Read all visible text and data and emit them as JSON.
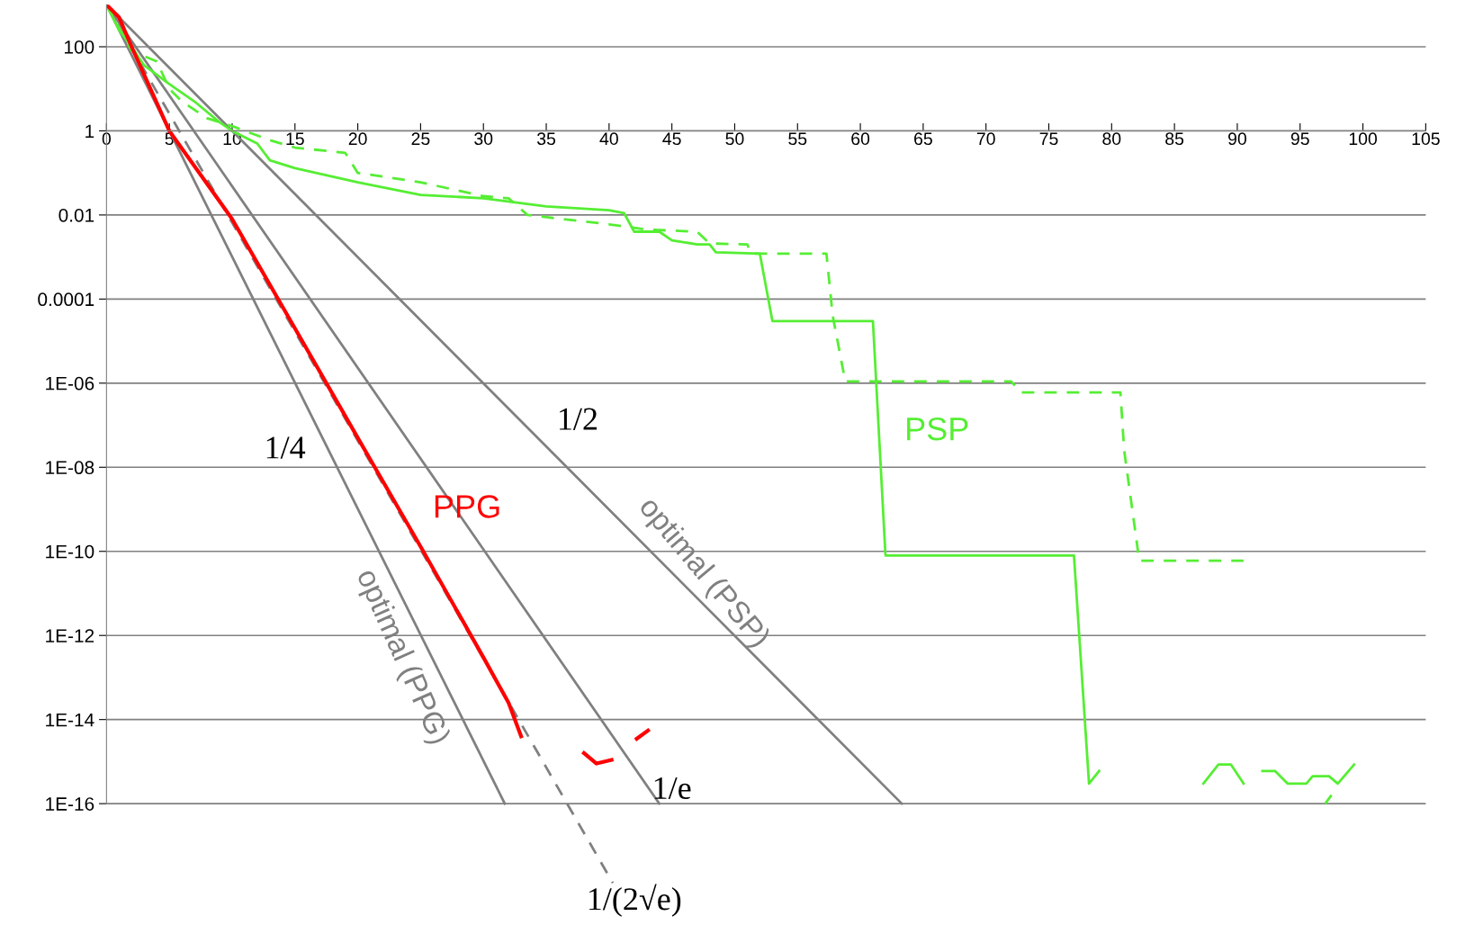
{
  "chart_data": {
    "type": "line",
    "log": "y",
    "grid": "y",
    "legend": false,
    "xlim": [
      0,
      105
    ],
    "xticks": [
      0,
      5,
      10,
      15,
      20,
      25,
      30,
      35,
      40,
      45,
      50,
      55,
      60,
      65,
      70,
      75,
      80,
      85,
      90,
      95,
      100,
      105
    ],
    "ylim": [
      1e-19,
      1000
    ],
    "yticks": [
      100,
      1,
      0.01,
      0.0001,
      {
        "value": 1e-06,
        "label": "1E-06"
      },
      {
        "value": 1e-08,
        "label": "1E-08"
      },
      {
        "value": 1e-10,
        "label": "1E-10"
      },
      {
        "value": 1e-12,
        "label": "1E-12"
      },
      {
        "value": 1e-14,
        "label": "1E-14"
      },
      {
        "value": 1e-16,
        "label": "1E-16"
      }
    ],
    "series": [
      {
        "name": "1/2",
        "color": "#808080",
        "x": [
          0,
          63.3
        ],
        "values": [
          1000,
          1e-16
        ]
      },
      {
        "name": "1/e",
        "color": "#808080",
        "x": [
          0,
          44.0
        ],
        "values": [
          1000,
          1e-16
        ]
      },
      {
        "name": "1/4",
        "color": "#808080",
        "x": [
          0,
          31.7
        ],
        "values": [
          1000,
          1e-16
        ]
      },
      {
        "name": "1/(2√e)",
        "color": "#808080",
        "line_style": "dashed",
        "x": [
          0,
          40.3
        ],
        "values": [
          1000,
          1.3e-18
        ]
      },
      {
        "name": "PSP",
        "color": "#55ee33",
        "x": [
          0,
          1,
          2,
          3,
          5,
          7,
          9,
          10,
          12,
          13,
          15,
          20,
          25,
          30,
          35,
          40,
          41.2,
          42,
          44,
          45,
          47,
          48,
          48.5,
          52,
          53,
          61,
          62,
          70,
          77,
          78.2,
          79,
          83,
          87.3,
          88.5,
          89.5,
          90.5,
          91.2,
          92,
          93,
          94,
          95.5,
          96,
          97.3,
          98,
          99.3
        ],
        "values": [
          1000,
          250,
          100,
          36,
          13,
          5,
          1.6,
          1,
          0.5,
          0.2,
          0.13,
          0.06,
          0.03,
          0.025,
          0.016,
          0.013,
          0.011,
          0.004,
          0.004,
          0.0025,
          0.002,
          0.002,
          0.0013,
          0.0012,
          3e-05,
          3e-05,
          8e-11,
          8e-11,
          8e-11,
          3e-16,
          6e-16,
          null,
          3e-16,
          8.5e-16,
          8.5e-16,
          3e-16,
          null,
          6e-16,
          6e-16,
          3e-16,
          3e-16,
          4.5e-16,
          4.5e-16,
          3e-16,
          8.5e-16
        ]
      },
      {
        "color": "#55ee33",
        "line_style": "dashed",
        "x": [
          0,
          2,
          3,
          4,
          5,
          6,
          8,
          10,
          13,
          15,
          19,
          20,
          25,
          30,
          32,
          33.5,
          40,
          43,
          47,
          48,
          51,
          51.3,
          57.3,
          57.8,
          58.8,
          72,
          72.8,
          80.7,
          81,
          82.2,
          90.5,
          94,
          97,
          97.5
        ],
        "values": [
          1000,
          80,
          60,
          45,
          10,
          5,
          2,
          1.3,
          0.6,
          0.4,
          0.3,
          0.1,
          0.06,
          0.028,
          0.025,
          0.01,
          0.006,
          0.0045,
          0.004,
          0.0021,
          0.002,
          0.0012,
          0.0012,
          4e-05,
          1.1e-06,
          1.1e-06,
          6e-07,
          6e-07,
          2.5e-08,
          6e-11,
          6e-11,
          null,
          1e-16,
          1.6e-16
        ]
      },
      {
        "name": "PPG",
        "color": "#ff0000",
        "x": [
          0,
          1,
          2,
          5,
          10,
          15,
          20,
          25,
          30,
          32,
          33,
          35.5,
          38,
          39,
          40.2,
          41.2,
          42.2,
          43.1
        ],
        "values": [
          1000,
          500,
          100,
          1,
          0.008,
          2e-05,
          5e-08,
          1.3e-10,
          3e-13,
          2.5e-14,
          4e-15,
          null,
          1.6e-15,
          9e-16,
          1.1e-15,
          null,
          3.5e-15,
          5.5e-15
        ]
      }
    ],
    "annotations": [
      "optimal (PSP)",
      "optimal (PPG)"
    ]
  }
}
